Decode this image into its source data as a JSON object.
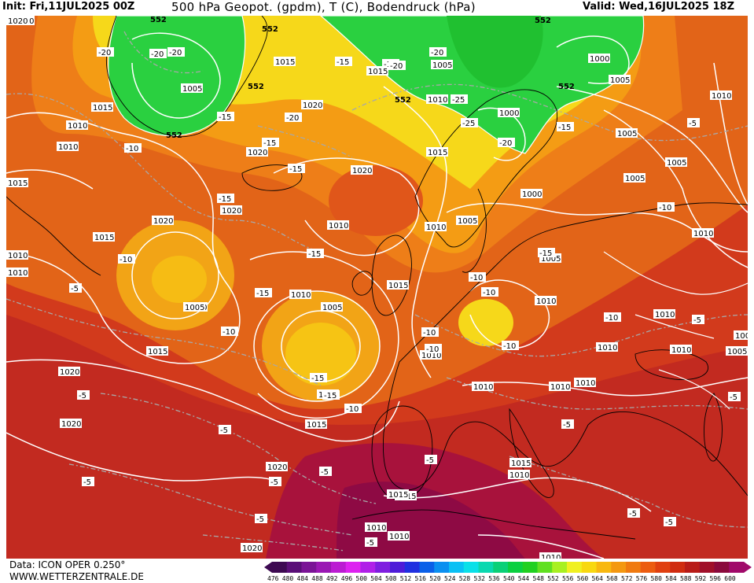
{
  "header": {
    "init": "Init: Fri,11JUL2025 00Z",
    "title": "500 hPa Geopot. (gpdm), T (C), Bodendruck (hPa)",
    "valid": "Valid: Wed,16JUL2025 18Z"
  },
  "footer": {
    "data": "Data: ICON OPER 0.250°",
    "site": "WWW.WETTERZENTRALE.DE"
  },
  "colorbar": {
    "values": [
      "476",
      "480",
      "484",
      "488",
      "492",
      "496",
      "500",
      "504",
      "508",
      "512",
      "516",
      "520",
      "524",
      "528",
      "532",
      "536",
      "540",
      "544",
      "548",
      "552",
      "556",
      "560",
      "564",
      "568",
      "572",
      "576",
      "580",
      "584",
      "588",
      "592",
      "596",
      "600"
    ],
    "colors": [
      "#3d0a52",
      "#5a0f78",
      "#7a1496",
      "#9a18b4",
      "#bb1cd2",
      "#dd22f0",
      "#b020e8",
      "#7f1ee0",
      "#4e1cd8",
      "#2030e0",
      "#0a60e8",
      "#0a90f0",
      "#0ac0f4",
      "#0ae0e8",
      "#0ad8b0",
      "#0ad078",
      "#0ad040",
      "#20d020",
      "#60e020",
      "#a8f020",
      "#f0f020",
      "#f8d810",
      "#f8b810",
      "#f49810",
      "#f07a10",
      "#ec5c10",
      "#e04010",
      "#d02c10",
      "#b81c18",
      "#a0102a",
      "#8a0a3c",
      "#a00a6a"
    ]
  },
  "labels": {
    "geo": [
      {
        "t": "552"
      },
      {
        "t": "552"
      },
      {
        "t": "552"
      },
      {
        "t": "552"
      },
      {
        "t": "552"
      },
      {
        "t": "552"
      },
      {
        "t": "552"
      }
    ],
    "pressure": [
      {
        "t": "1020"
      },
      {
        "t": "1015"
      },
      {
        "t": "1010"
      },
      {
        "t": "1010"
      },
      {
        "t": "1005"
      },
      {
        "t": "1015"
      },
      {
        "t": "1015"
      },
      {
        "t": "1020"
      },
      {
        "t": "1020"
      },
      {
        "t": "1020"
      },
      {
        "t": "1020"
      },
      {
        "t": "1010"
      },
      {
        "t": "1015"
      },
      {
        "t": "1005"
      },
      {
        "t": "1010"
      },
      {
        "t": "1010"
      },
      {
        "t": "1005"
      },
      {
        "t": "1015"
      },
      {
        "t": "1020"
      },
      {
        "t": "1020"
      },
      {
        "t": "1015"
      },
      {
        "t": "1020"
      },
      {
        "t": "1015"
      },
      {
        "t": "1020"
      },
      {
        "t": "1010"
      },
      {
        "t": "1005"
      },
      {
        "t": "1015"
      },
      {
        "t": "1005"
      },
      {
        "t": "1010"
      },
      {
        "t": "1000"
      },
      {
        "t": "1000"
      },
      {
        "t": "1005"
      },
      {
        "t": "1005"
      },
      {
        "t": "1005"
      },
      {
        "t": "1010"
      },
      {
        "t": "1005"
      },
      {
        "t": "1000"
      },
      {
        "t": "1010"
      },
      {
        "t": "1005"
      },
      {
        "t": "1015"
      },
      {
        "t": "1010"
      },
      {
        "t": "1005"
      },
      {
        "t": "1010"
      },
      {
        "t": "1010"
      },
      {
        "t": "1010"
      },
      {
        "t": "1005"
      },
      {
        "t": "1010"
      },
      {
        "t": "1010"
      },
      {
        "t": "1010"
      },
      {
        "t": "1010"
      },
      {
        "t": "1015"
      },
      {
        "t": "1010"
      },
      {
        "t": "1015"
      },
      {
        "t": "1010"
      },
      {
        "t": "1010"
      },
      {
        "t": "1010"
      },
      {
        "t": "1020"
      },
      {
        "t": "1015"
      },
      {
        "t": "1010"
      },
      {
        "t": "1010"
      },
      {
        "t": "1020"
      },
      {
        "t": "1020"
      },
      {
        "t": "1010"
      }
    ],
    "temp": [
      {
        "t": "-20"
      },
      {
        "t": "-20"
      },
      {
        "t": "-20"
      },
      {
        "t": "-15"
      },
      {
        "t": "-20"
      },
      {
        "t": "-15"
      },
      {
        "t": "-15"
      },
      {
        "t": "-20"
      },
      {
        "t": "-20"
      },
      {
        "t": "-25"
      },
      {
        "t": "-25"
      },
      {
        "t": "-20"
      },
      {
        "t": "-15"
      },
      {
        "t": "-10"
      },
      {
        "t": "-15"
      },
      {
        "t": "-15"
      },
      {
        "t": "-15"
      },
      {
        "t": "-10"
      },
      {
        "t": "-10"
      },
      {
        "t": "-15"
      },
      {
        "t": "-15"
      },
      {
        "t": "-5"
      },
      {
        "t": "-10"
      },
      {
        "t": "-15"
      },
      {
        "t": "-10"
      },
      {
        "t": "-10"
      },
      {
        "t": "-10"
      },
      {
        "t": "-10"
      },
      {
        "t": "-5"
      },
      {
        "t": "-10"
      },
      {
        "t": "-5"
      },
      {
        "t": "-5"
      },
      {
        "t": "-5"
      },
      {
        "t": "-5"
      },
      {
        "t": "-5"
      },
      {
        "t": "-5"
      },
      {
        "t": "-5"
      },
      {
        "t": "-5"
      },
      {
        "t": "-5"
      },
      {
        "t": "-5"
      },
      {
        "t": "-5"
      },
      {
        "t": "-5"
      },
      {
        "t": "-10"
      },
      {
        "t": "-15"
      },
      {
        "t": "-10"
      },
      {
        "t": "-5"
      },
      {
        "t": "-15"
      }
    ]
  }
}
